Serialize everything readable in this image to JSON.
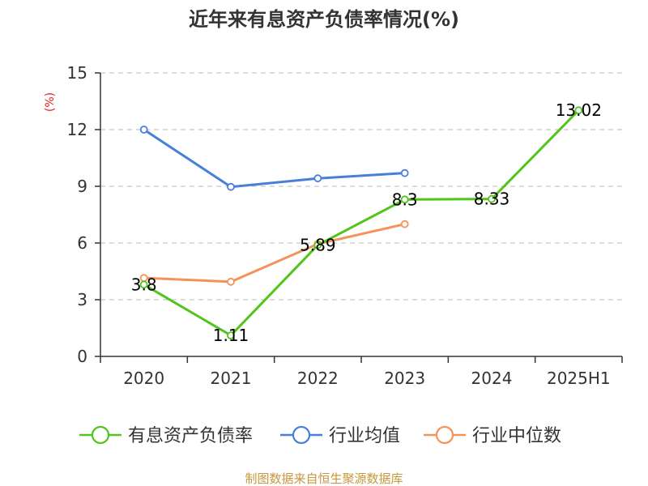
{
  "chart_data": {
    "type": "line",
    "title": "近年来有息资产负债率情况(%)",
    "ylabel": "(%)",
    "categories": [
      "2020",
      "2021",
      "2022",
      "2023",
      "2024",
      "2025H1"
    ],
    "ylim": [
      0,
      15
    ],
    "yticks": [
      0,
      3,
      6,
      9,
      12,
      15
    ],
    "grid": true,
    "legend_position": "bottom",
    "series": [
      {
        "name": "有息资产负债率",
        "color": "#52c41a",
        "values": [
          3.8,
          1.11,
          5.89,
          8.3,
          8.33,
          13.02
        ],
        "labels": [
          "3.8",
          "1.11",
          "5.89",
          "8.3",
          "8.33",
          "13.02"
        ]
      },
      {
        "name": "行业均值",
        "color": "#4a7fd9",
        "values": [
          12.0,
          8.97,
          9.42,
          9.7,
          null,
          null
        ]
      },
      {
        "name": "行业中位数",
        "color": "#f4925a",
        "values": [
          4.15,
          3.95,
          5.95,
          7.0,
          null,
          null
        ]
      }
    ]
  },
  "colors": {
    "unit_label": "#e02020",
    "source_text": "#c8963c",
    "grid": "#bbbbbb",
    "axis": "#333333"
  },
  "source_text": "制图数据来自恒生聚源数据库"
}
